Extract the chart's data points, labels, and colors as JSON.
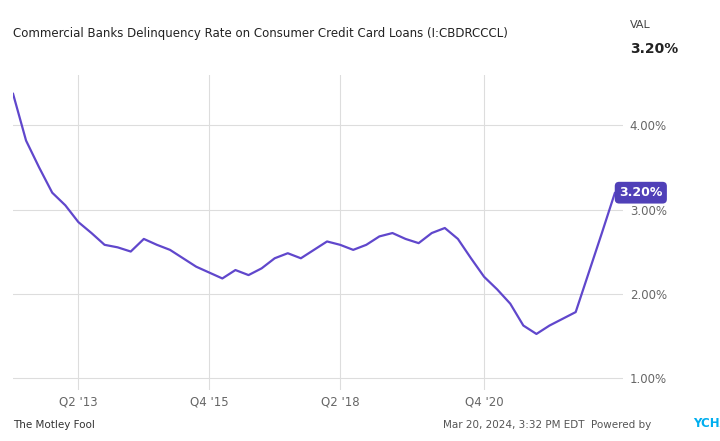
{
  "title": "Commercial Banks Delinquency Rate on Consumer Credit Card Loans (I:CBDRCCCL)",
  "val_label": "VAL",
  "val_value": "3.20%",
  "line_color": "#6047CC",
  "background_color": "#ffffff",
  "plot_bg_color": "#ffffff",
  "grid_color": "#dddddd",
  "ylim": [
    0.85,
    4.6
  ],
  "yticks": [
    1.0,
    2.0,
    3.0,
    4.0
  ],
  "ytick_labels": [
    "1.00%",
    "2.00%",
    "3.00%",
    "4.00%"
  ],
  "xtick_labels": [
    "Q2 '13",
    "Q4 '15",
    "Q2 '18",
    "Q4 '20"
  ],
  "annotation_text": "3.20%",
  "annotation_bg": "#5040B8",
  "annotation_color": "#ffffff",
  "footer_left": "The Motley Fool",
  "data_x": [
    0,
    0.25,
    0.5,
    0.75,
    1.0,
    1.25,
    1.5,
    1.75,
    2.0,
    2.25,
    2.5,
    2.75,
    3.0,
    3.25,
    3.5,
    3.75,
    4.0,
    4.25,
    4.5,
    4.75,
    5.0,
    5.25,
    5.5,
    5.75,
    6.0,
    6.25,
    6.5,
    6.75,
    7.0,
    7.25,
    7.5,
    7.75,
    8.0,
    8.25,
    8.5,
    8.75,
    9.0,
    9.25,
    9.5,
    9.75,
    10.0,
    10.25,
    10.5,
    10.75,
    11.0,
    11.25,
    11.5
  ],
  "data_y": [
    4.38,
    3.82,
    3.5,
    3.2,
    3.05,
    2.85,
    2.72,
    2.58,
    2.55,
    2.5,
    2.65,
    2.58,
    2.52,
    2.42,
    2.32,
    2.25,
    2.18,
    2.28,
    2.22,
    2.3,
    2.42,
    2.48,
    2.42,
    2.52,
    2.62,
    2.58,
    2.52,
    2.58,
    2.68,
    2.72,
    2.65,
    2.6,
    2.72,
    2.78,
    2.65,
    2.42,
    2.2,
    2.05,
    1.88,
    1.62,
    1.52,
    1.62,
    1.7,
    1.78,
    2.25,
    2.72,
    3.2
  ],
  "x_tick_positions": [
    1.25,
    3.75,
    6.25,
    9.0
  ]
}
